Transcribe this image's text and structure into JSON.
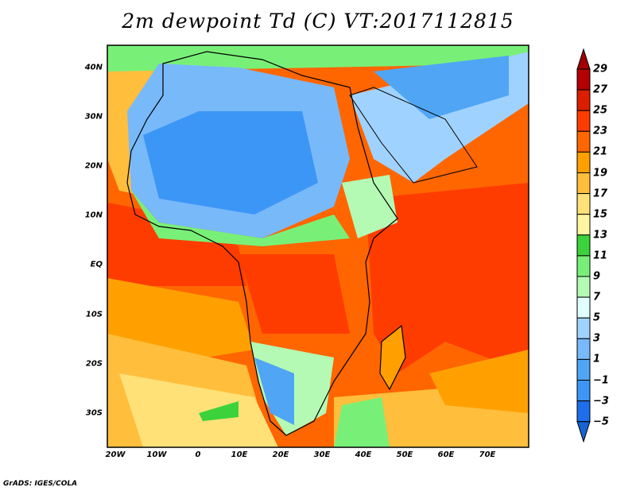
{
  "title": "2m dewpoint Td (C) VT:2017112815",
  "credit": "GrADS: IGES/COLA",
  "map": {
    "region": "Africa and Arabia",
    "lat_labels": [
      "40N",
      "30N",
      "20N",
      "10N",
      "EQ",
      "10S",
      "20S",
      "30S"
    ],
    "lon_labels": [
      "20W",
      "10W",
      "0",
      "10E",
      "20E",
      "30E",
      "40E",
      "50E",
      "60E",
      "70E"
    ]
  },
  "colorbar": {
    "labels": [
      "29",
      "27",
      "25",
      "23",
      "21",
      "19",
      "17",
      "15",
      "13",
      "11",
      "9",
      "7",
      "5",
      "3",
      "1",
      "−1",
      "−3",
      "−5"
    ],
    "colors": [
      "#b40000",
      "#dc1e00",
      "#ff3c00",
      "#ff6600",
      "#ffa000",
      "#ffbe3c",
      "#ffe178",
      "#fff5a0",
      "#3cd23c",
      "#78f078",
      "#b4fab4",
      "#e1ffff",
      "#a0d2ff",
      "#78b9fa",
      "#50a5f5",
      "#3c96f5",
      "#1e6eeb"
    ],
    "over_color": "#a00000",
    "under_color": "#1464d2"
  }
}
